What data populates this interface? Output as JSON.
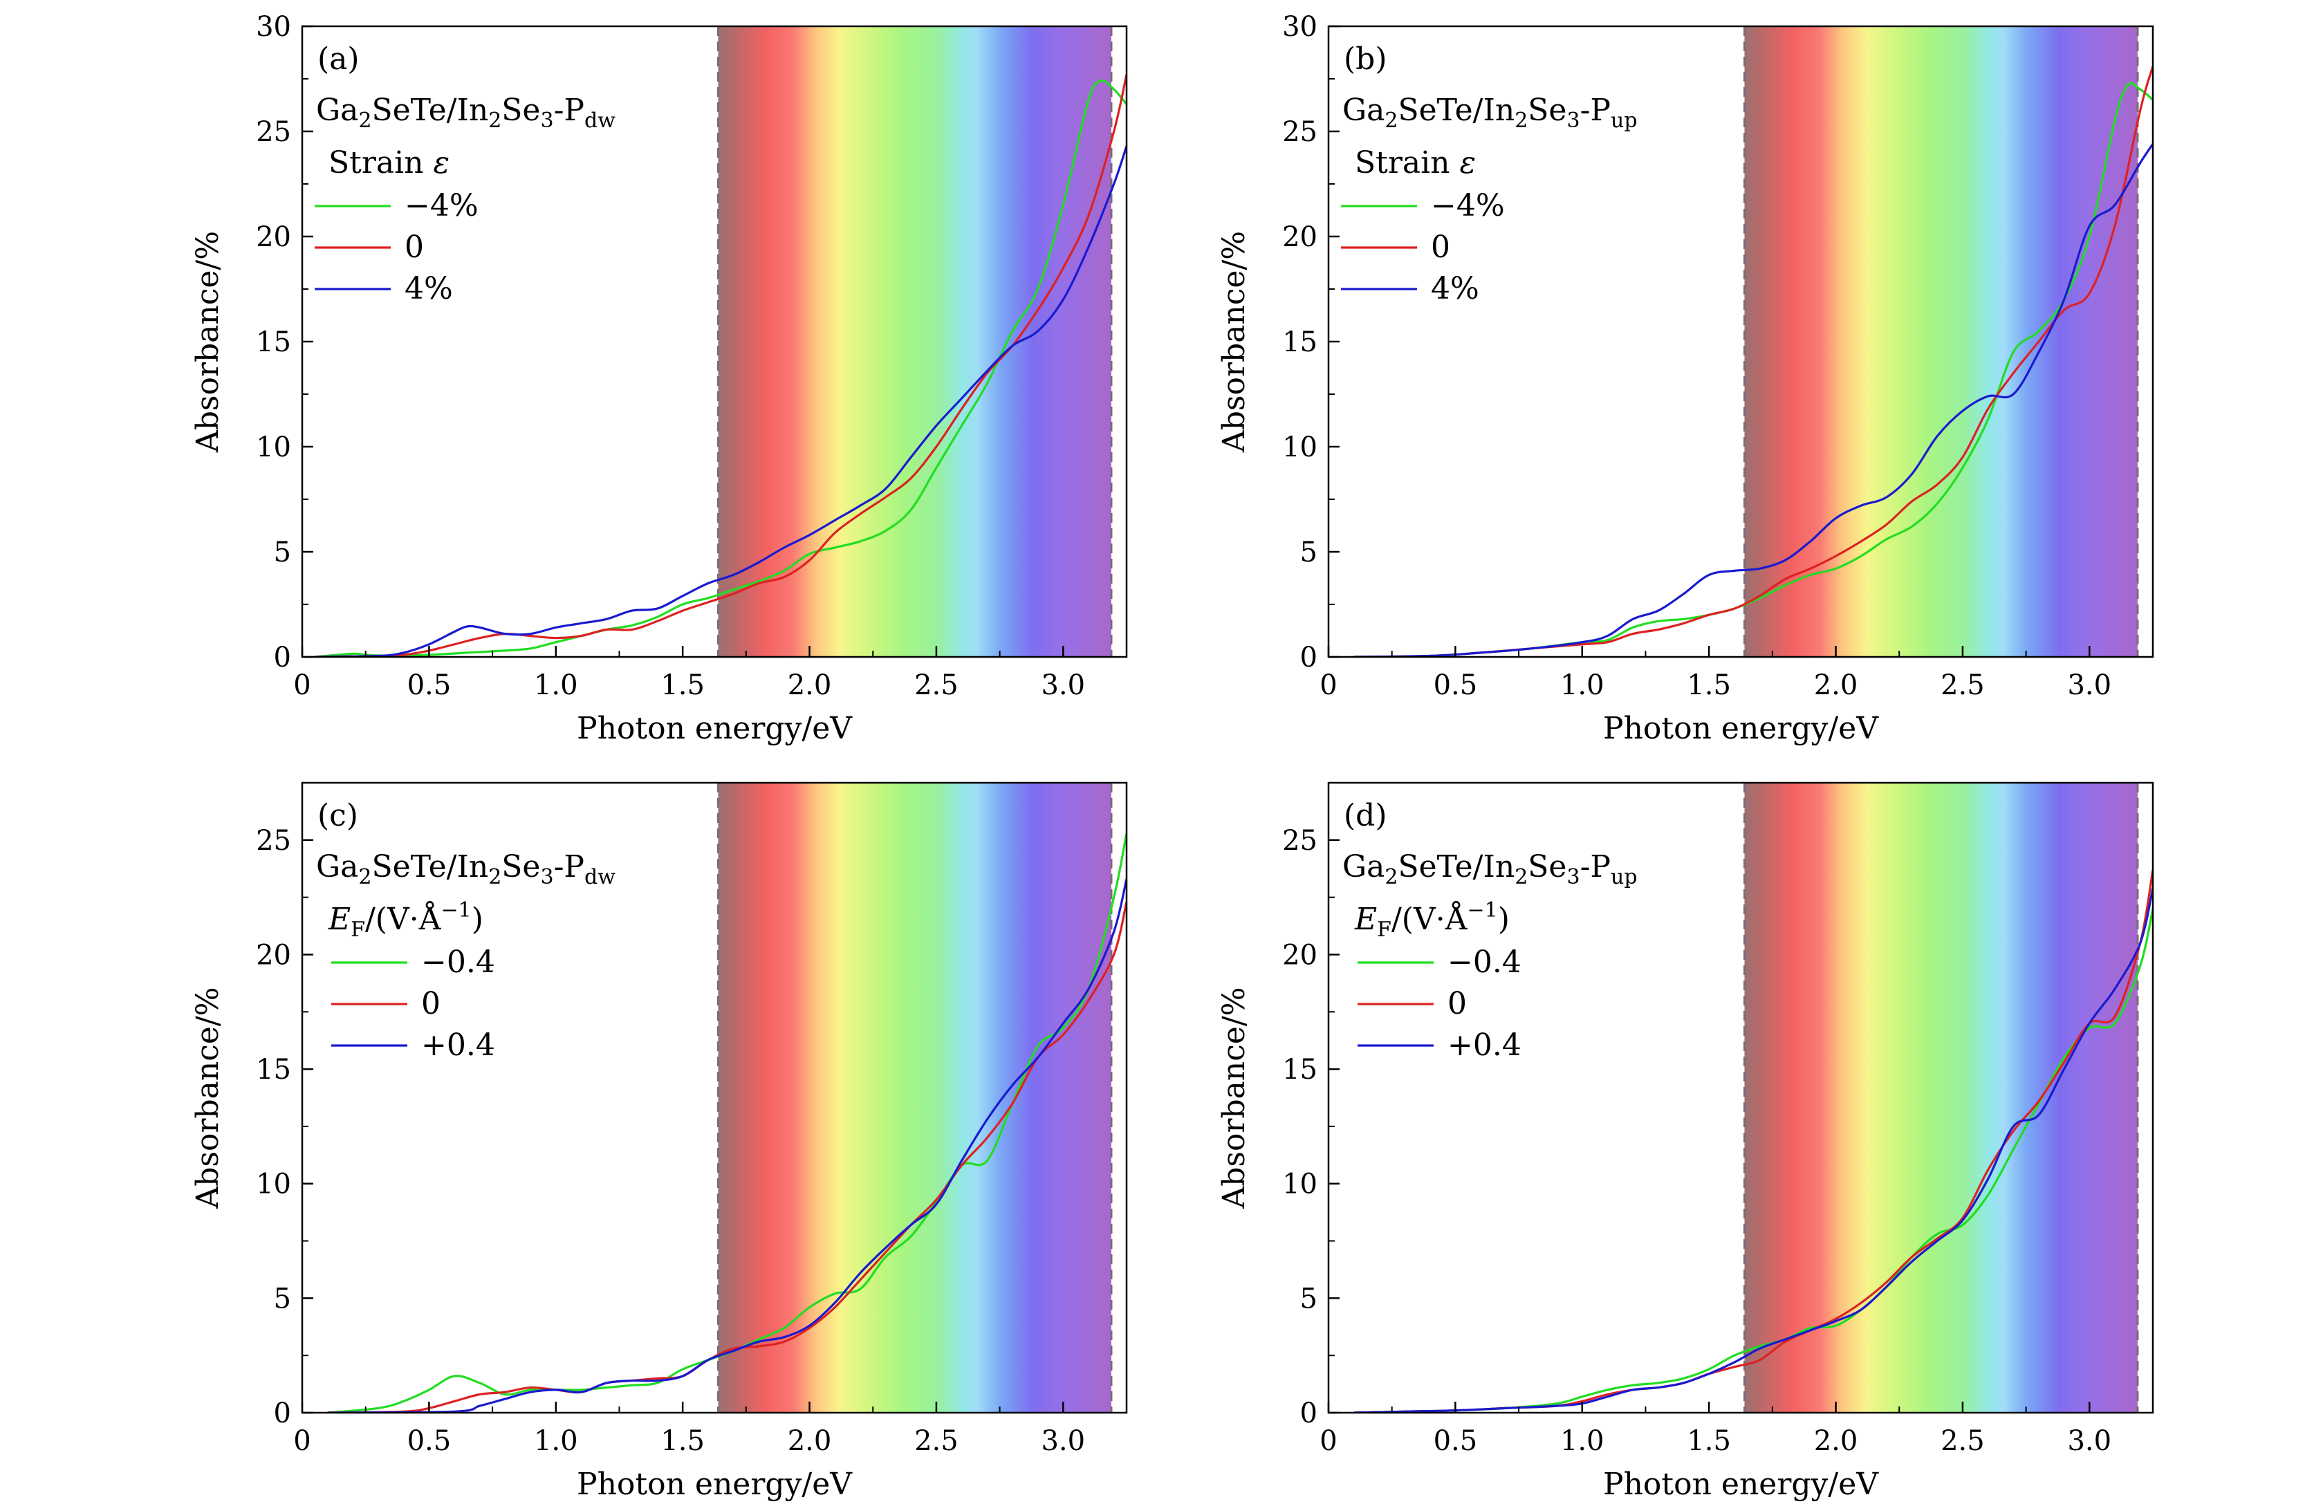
{
  "chart_data": [
    {
      "type": "line",
      "panel": "(a)",
      "material": {
        "a": "Ga",
        "a_sub": "2",
        "b": "SeTe/In",
        "b_sub": "2",
        "c": "Se",
        "c_sub": "3",
        "d": "-P",
        "d_sub": "dw"
      },
      "legend_title": {
        "main": "Strain ",
        "var": "ε",
        "var_sub": "",
        "tail": ""
      },
      "xlabel": "Photon energy/eV",
      "ylabel": "Absorbance/%",
      "xlim": [
        0,
        3.25
      ],
      "ylim": [
        0,
        30
      ],
      "xticks": [
        0,
        0.5,
        1.0,
        1.5,
        2.0,
        2.5,
        3.0
      ],
      "xtick_labels": [
        "0",
        "0.5",
        "1.0",
        "1.5",
        "2.0",
        "2.5",
        "3.0"
      ],
      "yticks": [
        0,
        5,
        10,
        15,
        20,
        25,
        30
      ],
      "ytick_labels": [
        "0",
        "5",
        "10",
        "15",
        "20",
        "25",
        "30"
      ],
      "visible_band": [
        1.64,
        3.19
      ],
      "series": [
        {
          "name": "−4%",
          "color": "#22dd22",
          "x": [
            0.05,
            0.2,
            0.25,
            0.35,
            0.5,
            0.65,
            0.8,
            0.9,
            1.0,
            1.1,
            1.2,
            1.3,
            1.4,
            1.5,
            1.6,
            1.7,
            1.8,
            1.9,
            2.0,
            2.1,
            2.2,
            2.3,
            2.4,
            2.5,
            2.6,
            2.7,
            2.8,
            2.9,
            3.0,
            3.1,
            3.15,
            3.2,
            3.25
          ],
          "y": [
            0,
            0.15,
            0.1,
            0.05,
            0.1,
            0.2,
            0.3,
            0.4,
            0.7,
            1.0,
            1.3,
            1.5,
            1.9,
            2.5,
            2.8,
            3.2,
            3.6,
            4.1,
            4.9,
            5.2,
            5.5,
            6.0,
            7.0,
            9.0,
            11.0,
            13.0,
            15.5,
            17.5,
            21.5,
            26.5,
            27.4,
            27.0,
            26.3
          ]
        },
        {
          "name": "0",
          "color": "#dd2222",
          "x": [
            0.05,
            0.3,
            0.4,
            0.5,
            0.6,
            0.7,
            0.8,
            0.9,
            1.0,
            1.1,
            1.2,
            1.3,
            1.4,
            1.5,
            1.6,
            1.7,
            1.8,
            1.9,
            2.0,
            2.1,
            2.2,
            2.3,
            2.4,
            2.5,
            2.6,
            2.7,
            2.8,
            2.9,
            3.0,
            3.1,
            3.2,
            3.25
          ],
          "y": [
            0,
            0.05,
            0.1,
            0.3,
            0.6,
            0.9,
            1.1,
            1.0,
            0.9,
            1.0,
            1.3,
            1.3,
            1.7,
            2.2,
            2.6,
            3.0,
            3.5,
            3.8,
            4.6,
            5.9,
            6.8,
            7.6,
            8.5,
            10.0,
            11.8,
            13.5,
            14.8,
            16.5,
            18.5,
            21.0,
            25.0,
            27.7
          ]
        },
        {
          "name": "4%",
          "color": "#1a1ad0",
          "x": [
            0.05,
            0.3,
            0.4,
            0.5,
            0.6,
            0.65,
            0.7,
            0.8,
            0.9,
            1.0,
            1.1,
            1.2,
            1.3,
            1.4,
            1.5,
            1.6,
            1.7,
            1.8,
            1.9,
            2.0,
            2.1,
            2.2,
            2.3,
            2.4,
            2.5,
            2.6,
            2.7,
            2.8,
            2.9,
            3.0,
            3.1,
            3.2,
            3.25
          ],
          "y": [
            0,
            0.05,
            0.2,
            0.6,
            1.2,
            1.45,
            1.4,
            1.1,
            1.1,
            1.4,
            1.6,
            1.8,
            2.2,
            2.3,
            2.9,
            3.5,
            3.9,
            4.5,
            5.2,
            5.8,
            6.5,
            7.2,
            8.0,
            9.5,
            11.0,
            12.3,
            13.6,
            14.8,
            15.5,
            17.0,
            19.5,
            22.5,
            24.3
          ]
        }
      ]
    },
    {
      "type": "line",
      "panel": "(b)",
      "material": {
        "a": "Ga",
        "a_sub": "2",
        "b": "SeTe/In",
        "b_sub": "2",
        "c": "Se",
        "c_sub": "3",
        "d": "-P",
        "d_sub": "up"
      },
      "legend_title": {
        "main": "Strain ",
        "var": "ε",
        "var_sub": "",
        "tail": ""
      },
      "xlabel": "Photon energy/eV",
      "ylabel": "Absorbance/%",
      "xlim": [
        0,
        3.25
      ],
      "ylim": [
        0,
        30
      ],
      "xticks": [
        0,
        0.5,
        1.0,
        1.5,
        2.0,
        2.5,
        3.0
      ],
      "xtick_labels": [
        "0",
        "0.5",
        "1.0",
        "1.5",
        "2.0",
        "2.5",
        "3.0"
      ],
      "yticks": [
        0,
        5,
        10,
        15,
        20,
        25,
        30
      ],
      "ytick_labels": [
        "0",
        "5",
        "10",
        "15",
        "20",
        "25",
        "30"
      ],
      "visible_band": [
        1.64,
        3.19
      ],
      "series": [
        {
          "name": "−4%",
          "color": "#22dd22",
          "x": [
            0.1,
            0.4,
            0.6,
            0.8,
            1.0,
            1.1,
            1.2,
            1.3,
            1.4,
            1.5,
            1.6,
            1.7,
            1.8,
            1.9,
            2.0,
            2.1,
            2.2,
            2.3,
            2.4,
            2.5,
            2.6,
            2.7,
            2.8,
            2.9,
            3.0,
            3.1,
            3.15,
            3.2,
            3.25
          ],
          "y": [
            0,
            0.05,
            0.2,
            0.4,
            0.7,
            0.8,
            1.4,
            1.7,
            1.8,
            2.0,
            2.3,
            2.8,
            3.4,
            3.9,
            4.2,
            4.8,
            5.6,
            6.2,
            7.3,
            9.0,
            11.3,
            14.5,
            15.5,
            17.0,
            20.0,
            25.5,
            27.2,
            27.0,
            26.5
          ]
        },
        {
          "name": "0",
          "color": "#dd2222",
          "x": [
            0.1,
            0.4,
            0.6,
            0.8,
            1.0,
            1.1,
            1.2,
            1.3,
            1.4,
            1.5,
            1.6,
            1.7,
            1.8,
            1.9,
            2.0,
            2.1,
            2.2,
            2.3,
            2.4,
            2.5,
            2.6,
            2.7,
            2.8,
            2.9,
            3.0,
            3.1,
            3.2,
            3.25
          ],
          "y": [
            0,
            0.05,
            0.2,
            0.4,
            0.6,
            0.7,
            1.1,
            1.3,
            1.6,
            2.0,
            2.3,
            2.9,
            3.7,
            4.2,
            4.8,
            5.5,
            6.3,
            7.4,
            8.2,
            9.5,
            11.8,
            13.5,
            15.0,
            16.5,
            17.3,
            20.5,
            26.0,
            28.1
          ]
        },
        {
          "name": "4%",
          "color": "#1a1ad0",
          "x": [
            0.1,
            0.4,
            0.6,
            0.8,
            1.0,
            1.1,
            1.2,
            1.3,
            1.4,
            1.5,
            1.6,
            1.7,
            1.8,
            1.9,
            2.0,
            2.1,
            2.2,
            2.3,
            2.4,
            2.5,
            2.6,
            2.7,
            2.8,
            2.9,
            3.0,
            3.1,
            3.2,
            3.25
          ],
          "y": [
            0,
            0.05,
            0.2,
            0.4,
            0.7,
            1.0,
            1.8,
            2.2,
            3.0,
            3.9,
            4.1,
            4.2,
            4.6,
            5.5,
            6.6,
            7.2,
            7.6,
            8.7,
            10.5,
            11.7,
            12.4,
            12.5,
            14.5,
            17.0,
            20.5,
            21.5,
            23.5,
            24.4
          ]
        }
      ]
    },
    {
      "type": "line",
      "panel": "(c)",
      "material": {
        "a": "Ga",
        "a_sub": "2",
        "b": "SeTe/In",
        "b_sub": "2",
        "c": "Se",
        "c_sub": "3",
        "d": "-P",
        "d_sub": "dw"
      },
      "legend_title": {
        "main": "",
        "var": "E",
        "var_sub": "F",
        "tail": "/(V·Å",
        "tail_sup": "−1",
        "tail_end": ")"
      },
      "xlabel": "Photon energy/eV",
      "ylabel": "Absorbance/%",
      "xlim": [
        0,
        3.25
      ],
      "ylim": [
        0,
        27.5
      ],
      "xticks": [
        0,
        0.5,
        1.0,
        1.5,
        2.0,
        2.5,
        3.0
      ],
      "xtick_labels": [
        "0",
        "0.5",
        "1.0",
        "1.5",
        "2.0",
        "2.5",
        "3.0"
      ],
      "yticks": [
        0,
        5,
        10,
        15,
        20,
        25
      ],
      "ytick_labels": [
        "0",
        "5",
        "10",
        "15",
        "20",
        "25"
      ],
      "visible_band": [
        1.64,
        3.19
      ],
      "series": [
        {
          "name": "−0.4",
          "color": "#22dd22",
          "x": [
            0.1,
            0.3,
            0.4,
            0.5,
            0.6,
            0.7,
            0.8,
            0.9,
            1.0,
            1.1,
            1.2,
            1.3,
            1.4,
            1.5,
            1.6,
            1.7,
            1.8,
            1.9,
            2.0,
            2.1,
            2.2,
            2.3,
            2.4,
            2.5,
            2.6,
            2.7,
            2.8,
            2.9,
            3.0,
            3.1,
            3.2,
            3.25
          ],
          "y": [
            0,
            0.2,
            0.5,
            1.0,
            1.6,
            1.3,
            0.8,
            1.0,
            1.0,
            1.0,
            1.1,
            1.2,
            1.3,
            1.9,
            2.3,
            2.7,
            3.2,
            3.7,
            4.6,
            5.2,
            5.4,
            6.8,
            7.7,
            9.2,
            10.8,
            11.0,
            13.5,
            16.0,
            16.8,
            18.5,
            22.5,
            25.3
          ]
        },
        {
          "name": "0",
          "color": "#dd2222",
          "x": [
            0.1,
            0.4,
            0.5,
            0.6,
            0.7,
            0.8,
            0.9,
            1.0,
            1.1,
            1.2,
            1.3,
            1.4,
            1.5,
            1.6,
            1.7,
            1.8,
            1.9,
            2.0,
            2.1,
            2.2,
            2.3,
            2.4,
            2.5,
            2.6,
            2.7,
            2.8,
            2.9,
            3.0,
            3.1,
            3.2,
            3.25
          ],
          "y": [
            0,
            0.05,
            0.2,
            0.5,
            0.8,
            0.9,
            1.1,
            1.0,
            0.9,
            1.3,
            1.4,
            1.5,
            1.6,
            2.3,
            2.8,
            2.9,
            3.1,
            3.7,
            4.6,
            5.8,
            7.0,
            8.2,
            9.3,
            10.8,
            12.0,
            13.5,
            15.5,
            16.5,
            18.0,
            20.0,
            22.3
          ]
        },
        {
          "name": "+0.4",
          "color": "#1a1ad0",
          "x": [
            0.1,
            0.6,
            0.7,
            0.8,
            0.9,
            1.0,
            1.1,
            1.2,
            1.3,
            1.4,
            1.5,
            1.6,
            1.7,
            1.8,
            1.9,
            2.0,
            2.1,
            2.2,
            2.3,
            2.4,
            2.5,
            2.6,
            2.7,
            2.8,
            2.9,
            3.0,
            3.1,
            3.2,
            3.25
          ],
          "y": [
            0,
            0.05,
            0.3,
            0.6,
            0.9,
            1.0,
            0.9,
            1.3,
            1.4,
            1.4,
            1.6,
            2.3,
            2.7,
            3.1,
            3.3,
            3.8,
            4.8,
            6.1,
            7.2,
            8.2,
            9.1,
            11.0,
            12.8,
            14.3,
            15.5,
            17.0,
            18.5,
            21.0,
            23.3
          ]
        }
      ]
    },
    {
      "type": "line",
      "panel": "(d)",
      "material": {
        "a": "Ga",
        "a_sub": "2",
        "b": "SeTe/In",
        "b_sub": "2",
        "c": "Se",
        "c_sub": "3",
        "d": "-P",
        "d_sub": "up"
      },
      "legend_title": {
        "main": "",
        "var": "E",
        "var_sub": "F",
        "tail": "/(V·Å",
        "tail_sup": "−1",
        "tail_end": ")"
      },
      "xlabel": "Photon energy/eV",
      "ylabel": "Absorbance/%",
      "xlim": [
        0,
        3.25
      ],
      "ylim": [
        0,
        27.5
      ],
      "xticks": [
        0,
        0.5,
        1.0,
        1.5,
        2.0,
        2.5,
        3.0
      ],
      "xtick_labels": [
        "0",
        "0.5",
        "1.0",
        "1.5",
        "2.0",
        "2.5",
        "3.0"
      ],
      "yticks": [
        0,
        5,
        10,
        15,
        20,
        25
      ],
      "ytick_labels": [
        "0",
        "5",
        "10",
        "15",
        "20",
        "25"
      ],
      "visible_band": [
        1.64,
        3.19
      ],
      "series": [
        {
          "name": "−0.4",
          "color": "#22dd22",
          "x": [
            0.1,
            0.3,
            0.5,
            0.7,
            0.9,
            1.0,
            1.1,
            1.2,
            1.3,
            1.4,
            1.5,
            1.6,
            1.7,
            1.8,
            1.9,
            2.0,
            2.1,
            2.2,
            2.3,
            2.4,
            2.5,
            2.6,
            2.7,
            2.8,
            2.9,
            3.0,
            3.1,
            3.2,
            3.25
          ],
          "y": [
            0,
            0.05,
            0.1,
            0.2,
            0.4,
            0.7,
            1.0,
            1.2,
            1.3,
            1.5,
            1.9,
            2.5,
            2.9,
            3.2,
            3.7,
            3.8,
            4.5,
            5.5,
            6.8,
            7.8,
            8.2,
            9.5,
            11.5,
            13.5,
            15.5,
            16.8,
            17.0,
            19.5,
            22.0
          ]
        },
        {
          "name": "0",
          "color": "#dd2222",
          "x": [
            0.1,
            0.3,
            0.5,
            0.7,
            0.9,
            1.0,
            1.1,
            1.2,
            1.3,
            1.4,
            1.5,
            1.6,
            1.7,
            1.8,
            1.9,
            2.0,
            2.1,
            2.2,
            2.3,
            2.4,
            2.5,
            2.6,
            2.7,
            2.8,
            2.9,
            3.0,
            3.1,
            3.2,
            3.25
          ],
          "y": [
            0,
            0.05,
            0.1,
            0.2,
            0.3,
            0.5,
            0.8,
            1.0,
            1.1,
            1.3,
            1.7,
            2.0,
            2.3,
            3.1,
            3.6,
            4.1,
            4.8,
            5.7,
            6.8,
            7.6,
            8.5,
            10.6,
            12.3,
            13.6,
            15.3,
            17.0,
            17.3,
            20.5,
            23.7
          ]
        },
        {
          "name": "+0.4",
          "color": "#1a1ad0",
          "x": [
            0.1,
            0.3,
            0.5,
            0.7,
            0.9,
            1.0,
            1.1,
            1.2,
            1.3,
            1.4,
            1.5,
            1.6,
            1.7,
            1.8,
            1.9,
            2.0,
            2.1,
            2.2,
            2.3,
            2.4,
            2.5,
            2.6,
            2.7,
            2.8,
            2.9,
            3.0,
            3.1,
            3.2,
            3.25
          ],
          "y": [
            0,
            0.05,
            0.1,
            0.2,
            0.3,
            0.4,
            0.7,
            1.0,
            1.1,
            1.3,
            1.7,
            2.2,
            2.8,
            3.2,
            3.6,
            4.0,
            4.5,
            5.5,
            6.6,
            7.5,
            8.4,
            10.2,
            12.5,
            13.0,
            15.0,
            17.0,
            18.5,
            20.5,
            22.9
          ]
        }
      ]
    }
  ]
}
